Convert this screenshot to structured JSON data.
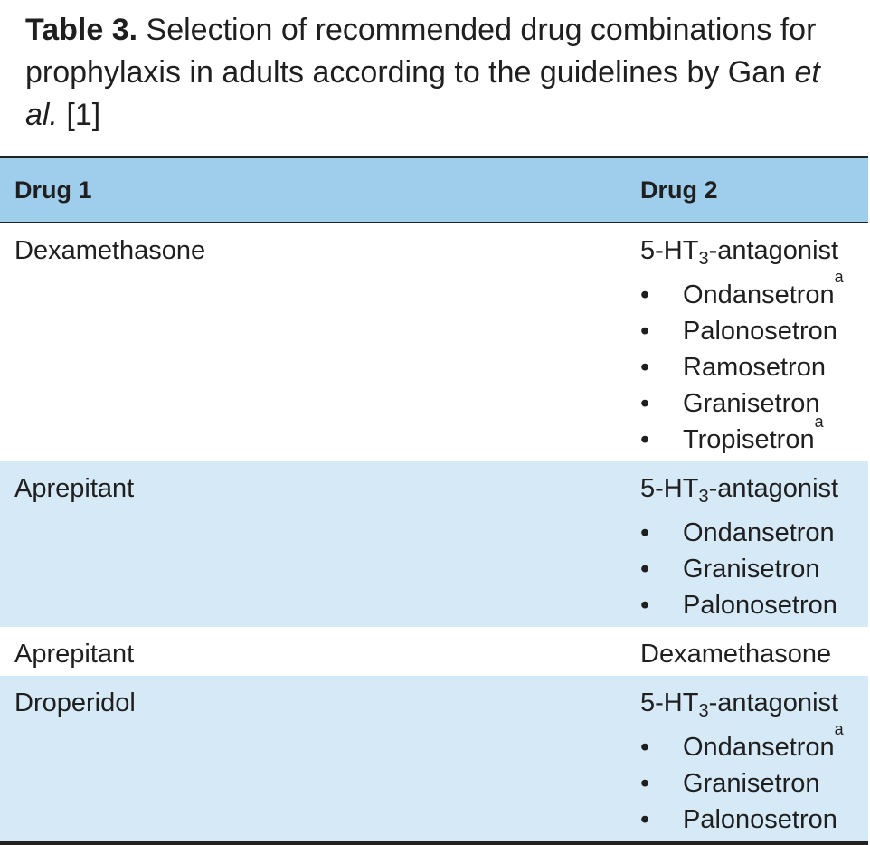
{
  "caption": {
    "label": "Table 3.",
    "text": " Selection of recommended drug combinations for prophylaxis in adults according to the guidelines by Gan ",
    "italic": "et al.",
    "ref": " [1]"
  },
  "table": {
    "headers": [
      "Drug 1",
      "Drug 2"
    ],
    "bullet_glyph": "•",
    "rows": [
      {
        "drug1": "Dexamethasone",
        "drug2_title": {
          "pre": "5-HT",
          "sub": "3",
          "post": "-antagonist"
        },
        "items": [
          {
            "name": "Ondansetron",
            "note": "a"
          },
          {
            "name": "Palonosetron",
            "note": ""
          },
          {
            "name": "Ramosetron",
            "note": ""
          },
          {
            "name": "Granisetron",
            "note": ""
          },
          {
            "name": "Tropisetron",
            "note": "a"
          }
        ]
      },
      {
        "drug1": "Aprepitant",
        "drug2_title": {
          "pre": "5-HT",
          "sub": "3",
          "post": "-antagonist"
        },
        "items": [
          {
            "name": "Ondansetron",
            "note": ""
          },
          {
            "name": "Granisetron",
            "note": ""
          },
          {
            "name": "Palonosetron",
            "note": ""
          }
        ]
      },
      {
        "drug1": "Aprepitant",
        "drug2_plain": "Dexamethasone"
      },
      {
        "drug1": "Droperidol",
        "drug2_title": {
          "pre": "5-HT",
          "sub": "3",
          "post": "-antagonist"
        },
        "items": [
          {
            "name": "Ondansetron",
            "note": "a"
          },
          {
            "name": "Granisetron",
            "note": ""
          },
          {
            "name": "Palonosetron",
            "note": ""
          }
        ]
      }
    ]
  },
  "colors": {
    "header_bg": "#9fcdec",
    "shaded_row_bg": "#d6e9f7",
    "rule": "#222222"
  }
}
